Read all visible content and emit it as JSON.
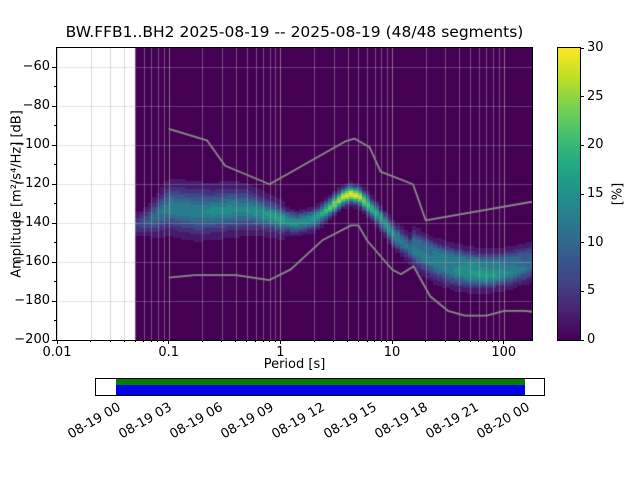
{
  "chart_data": {
    "type": "heatmap",
    "title": "BW.FFB1..BH2   2025-08-19 -- 2025-08-19  (48/48 segments)",
    "xlabel": "Period [s]",
    "ylabel": "Amplitude [m²/s⁴/Hz] [dB]",
    "xscale": "log",
    "xlim": [
      0.01,
      179
    ],
    "ylim": [
      -200,
      -50
    ],
    "grid": true,
    "xticks": [
      {
        "value": 0.01,
        "label": "0.01"
      },
      {
        "value": 0.1,
        "label": "0.1"
      },
      {
        "value": 1,
        "label": "1"
      },
      {
        "value": 10,
        "label": "10"
      },
      {
        "value": 100,
        "label": "100"
      }
    ],
    "yticks": [
      {
        "value": -200,
        "label": "−200"
      },
      {
        "value": -180,
        "label": "−180"
      },
      {
        "value": -160,
        "label": "−160"
      },
      {
        "value": -140,
        "label": "−140"
      },
      {
        "value": -120,
        "label": "−120"
      },
      {
        "value": -100,
        "label": "−100"
      },
      {
        "value": -80,
        "label": "−80"
      },
      {
        "value": -60,
        "label": "−60"
      }
    ],
    "background_color": "#440154",
    "no_data_max_period": 0.05,
    "period_bin_decades": 0.0376,
    "prob_quantum_pct": 2.0833,
    "colorbar": {
      "label": "[%]",
      "min": 0,
      "max": 30,
      "ticks": [
        {
          "value": 0,
          "label": "0"
        },
        {
          "value": 5,
          "label": "5"
        },
        {
          "value": 10,
          "label": "10"
        },
        {
          "value": 15,
          "label": "15"
        },
        {
          "value": 20,
          "label": "20"
        },
        {
          "value": 25,
          "label": "25"
        },
        {
          "value": 30,
          "label": "30"
        }
      ]
    },
    "colormap": [
      [
        0.0,
        "#440154"
      ],
      [
        0.1,
        "#482475"
      ],
      [
        0.2,
        "#414487"
      ],
      [
        0.3,
        "#355f8d"
      ],
      [
        0.4,
        "#2a788e"
      ],
      [
        0.5,
        "#21918c"
      ],
      [
        0.6,
        "#22a884"
      ],
      [
        0.7,
        "#44bf70"
      ],
      [
        0.8,
        "#7ad151"
      ],
      [
        0.9,
        "#bddf26"
      ],
      [
        1.0,
        "#fde725"
      ]
    ],
    "pdf_ridge": {
      "periods_s": [
        0.05,
        0.065,
        0.08,
        0.1,
        0.13,
        0.18,
        0.25,
        0.35,
        0.5,
        0.7,
        1.0,
        1.4,
        2.0,
        2.8,
        3.5,
        4.2,
        5.0,
        6.0,
        7.5,
        10,
        13,
        18,
        25,
        35,
        50,
        70,
        100,
        140,
        180
      ],
      "mean_db": [
        -141,
        -139,
        -136,
        -132,
        -133,
        -134,
        -134,
        -133,
        -133,
        -135,
        -138,
        -140,
        -138,
        -132,
        -127,
        -125,
        -126,
        -130,
        -136,
        -145,
        -151,
        -157,
        -161,
        -164,
        -166,
        -167,
        -166,
        -164,
        -162
      ],
      "peak_pct": [
        5,
        8,
        10,
        12,
        12,
        12,
        13,
        13,
        13,
        14,
        16,
        15,
        16,
        22,
        27,
        30,
        28,
        22,
        17,
        14,
        12,
        11,
        11,
        12,
        14,
        15,
        13,
        11,
        9
      ],
      "spread_db": [
        3,
        4,
        5,
        6,
        6.5,
        6.5,
        6,
        6,
        5.5,
        4.5,
        3.5,
        3,
        3,
        2.8,
        2.5,
        2.5,
        2.5,
        2.8,
        3,
        3.2,
        3.5,
        4,
        4.5,
        4.5,
        4,
        3.5,
        3.5,
        3.5,
        3.5
      ]
    },
    "noise_models": {
      "color": "#8a8a8a",
      "nhnm": [
        [
          0.1,
          -91.5
        ],
        [
          0.22,
          -97.4
        ],
        [
          0.32,
          -110.5
        ],
        [
          0.8,
          -120.0
        ],
        [
          3.8,
          -98.0
        ],
        [
          4.6,
          -96.5
        ],
        [
          6.3,
          -101.0
        ],
        [
          7.9,
          -113.5
        ],
        [
          15.4,
          -120.0
        ],
        [
          20.0,
          -138.5
        ],
        [
          354.8,
          -126.0
        ]
      ],
      "nlnm": [
        [
          0.1,
          -168.0
        ],
        [
          0.17,
          -166.7
        ],
        [
          0.4,
          -166.7
        ],
        [
          0.8,
          -169.2
        ],
        [
          1.24,
          -163.7
        ],
        [
          2.4,
          -148.6
        ],
        [
          4.3,
          -141.1
        ],
        [
          5.0,
          -141.1
        ],
        [
          6.0,
          -149.0
        ],
        [
          10.0,
          -163.8
        ],
        [
          12.0,
          -166.2
        ],
        [
          15.6,
          -162.1
        ],
        [
          21.9,
          -177.5
        ],
        [
          31.6,
          -185.0
        ],
        [
          45.0,
          -187.5
        ],
        [
          70.0,
          -187.5
        ],
        [
          101.0,
          -185.0
        ],
        [
          154.0,
          -185.0
        ],
        [
          328.0,
          -187.5
        ]
      ]
    }
  },
  "timeline": {
    "tick_labels": [
      "08-19 00",
      "08-19 03",
      "08-19 06",
      "08-19 09",
      "08-19 12",
      "08-19 15",
      "08-19 18",
      "08-19 21",
      "08-20 00"
    ],
    "used_color": "#008000",
    "data_color": "#0000ee",
    "coverage_start_frac": 0.0446,
    "coverage_end_frac": 0.9576
  }
}
